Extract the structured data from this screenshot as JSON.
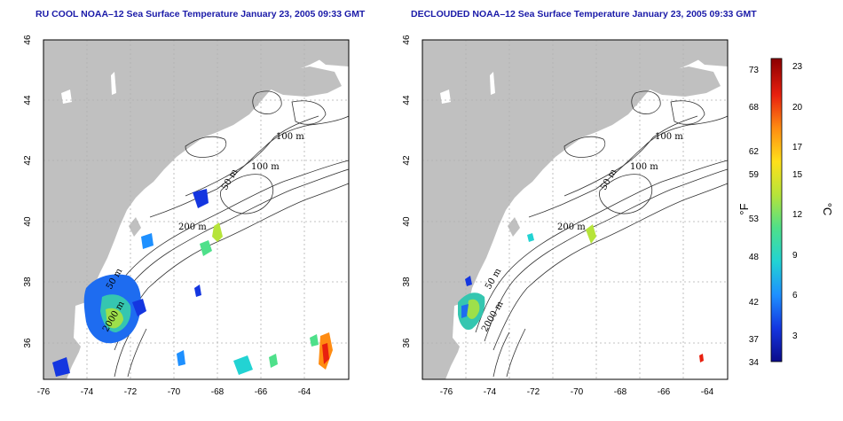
{
  "panels": [
    {
      "title": "RU COOL NOAA–12 Sea Surface Temperature January 23, 2005 09:33 GMT",
      "x_ticks": [
        "-76",
        "-74",
        "-72",
        "-70",
        "-68",
        "-66",
        "-64"
      ],
      "y_ticks": [
        "36",
        "38",
        "40",
        "42",
        "44",
        "46"
      ],
      "contour_labels": [
        "100 m",
        "100 m",
        "50 m",
        "200 m",
        "50 m",
        "2000 m"
      ]
    },
    {
      "title": "DECLOUDED NOAA–12 Sea Surface Temperature January 23, 2005 09:33 GMT",
      "x_ticks": [
        "-76",
        "-74",
        "-72",
        "-70",
        "-68",
        "-66",
        "-64"
      ],
      "y_ticks": [
        "36",
        "38",
        "40",
        "42",
        "44",
        "46"
      ],
      "contour_labels": [
        "100 m",
        "100 m",
        "50 m",
        "200 m",
        "50 m",
        "2000 m"
      ]
    }
  ],
  "colorbar": {
    "fahrenheit_ticks": [
      "73",
      "68",
      "62",
      "59",
      "53",
      "48",
      "42",
      "37",
      "34"
    ],
    "celsius_ticks": [
      "23",
      "20",
      "17",
      "15",
      "12",
      "9",
      "6",
      "3"
    ],
    "fahrenheit_unit": "°F",
    "celsius_unit": "°C",
    "gradient": [
      "#0b0b8a",
      "#1436e0",
      "#1e90ff",
      "#22d3d3",
      "#4ee08a",
      "#b6e43a",
      "#ffe01a",
      "#ff8c12",
      "#e8200f",
      "#8b0000"
    ]
  },
  "colors": {
    "land": "#c0c0c0",
    "ocean": "#ffffff",
    "grid": "#b0b0b0",
    "title": "#1a1aa8"
  }
}
